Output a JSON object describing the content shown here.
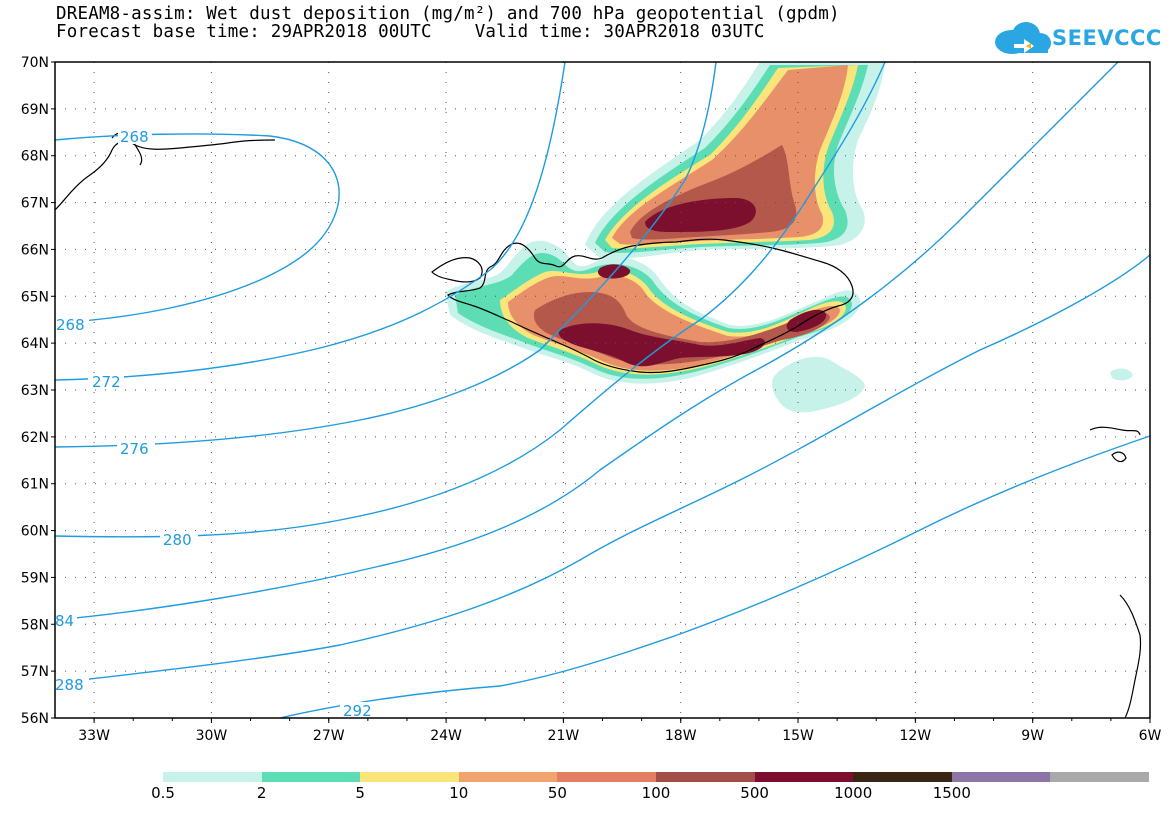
{
  "title": {
    "line1": "DREAM8-assim: Wet dust deposition (mg/m²) and 700 hPa geopotential (gpdm)",
    "line2": "Forecast base time: 29APR2018 00UTC    Valid time: 30APR2018 03UTC"
  },
  "logo": {
    "text": "SEEVCCC"
  },
  "axes": {
    "lat_labels": [
      "70N",
      "69N",
      "68N",
      "67N",
      "66N",
      "65N",
      "64N",
      "63N",
      "62N",
      "61N",
      "60N",
      "59N",
      "58N",
      "57N",
      "56N"
    ],
    "lon_labels": [
      "33W",
      "30W",
      "27W",
      "24W",
      "21W",
      "18W",
      "15W",
      "12W",
      "9W",
      "6W"
    ],
    "lat_range": [
      56,
      70
    ],
    "lon_range": [
      -34,
      -6
    ]
  },
  "contour_labels": [
    {
      "text": "268"
    },
    {
      "text": "268"
    },
    {
      "text": "272"
    },
    {
      "text": "276"
    },
    {
      "text": "280"
    },
    {
      "text": "84"
    },
    {
      "text": "288"
    },
    {
      "text": "292"
    }
  ],
  "colorbar": {
    "thresholds": [
      "0.5",
      "2",
      "5",
      "10",
      "50",
      "100",
      "500",
      "1000",
      "1500"
    ],
    "colors": [
      "#c6f2ea",
      "#5dddb4",
      "#fbe57a",
      "#f0a36e",
      "#e27f62",
      "#a24e46",
      "#7c0f2e",
      "#3b2615",
      "#8c74a6",
      "#a9a9a9"
    ]
  },
  "colors": {
    "contour": "#1f9be0",
    "coast": "#000000"
  }
}
